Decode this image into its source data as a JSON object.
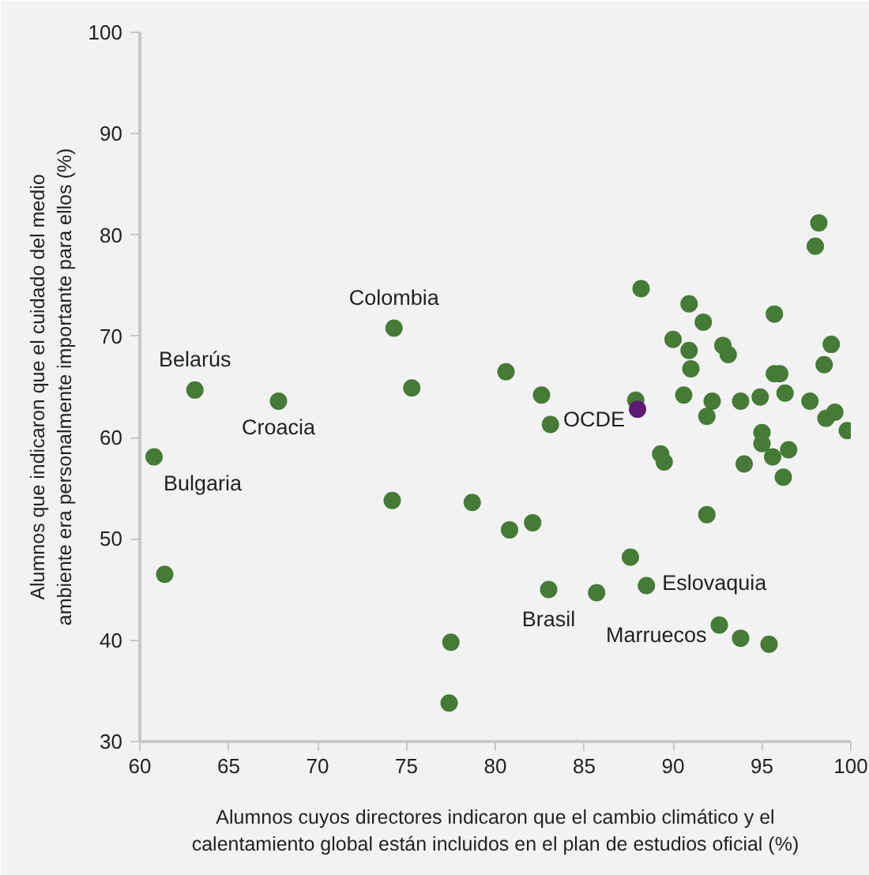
{
  "chart_data": {
    "type": "scatter",
    "xlabel": "Alumnos cuyos directores indicaron que el cambio climático y el calentamiento global están incluidos en el plan de estudios oficial (%)",
    "ylabel": "Alumnos que indicaron que el cuidado del medio ambiente era personalmente importante para ellos (%)",
    "xlim": [
      60,
      100
    ],
    "xticks": [
      60,
      65,
      70,
      75,
      80,
      85,
      90,
      95,
      100
    ],
    "ylim": [
      30,
      100
    ],
    "yticks": [
      30,
      40,
      50,
      60,
      70,
      80,
      90,
      100
    ],
    "grid": false,
    "marker": "circle",
    "series": [
      {
        "color": "#457a37",
        "x": [
          60.8,
          61.4,
          63.1,
          67.8,
          74.3,
          75.3,
          74.2,
          78.7,
          77.5,
          77.4,
          98.2,
          98.0,
          88.2,
          90.9,
          91.7,
          95.7,
          90.0,
          90.9,
          92.8,
          93.1,
          98.9,
          91.0,
          98.5,
          80.6,
          82.6,
          83.1,
          87.9,
          90.6,
          92.2,
          91.9,
          93.8,
          94.9,
          95.7,
          96.0,
          96.3,
          97.7,
          98.6,
          99.1,
          99.8,
          95.0,
          95.0,
          95.6,
          96.5,
          89.3,
          89.5,
          94.0,
          96.2,
          80.8,
          82.1,
          91.9,
          87.6,
          83.0,
          85.7,
          88.5,
          92.6,
          93.8,
          95.4
        ],
        "values": [
          58.1,
          46.5,
          64.7,
          63.6,
          70.8,
          64.9,
          53.8,
          53.6,
          39.8,
          33.8,
          81.2,
          78.9,
          74.7,
          73.2,
          71.4,
          72.2,
          69.7,
          68.6,
          69.1,
          68.2,
          69.2,
          66.8,
          67.2,
          66.5,
          64.2,
          61.3,
          63.7,
          64.2,
          63.6,
          62.1,
          63.6,
          64.0,
          66.3,
          66.3,
          64.4,
          63.6,
          61.9,
          62.5,
          60.7,
          60.5,
          59.4,
          58.1,
          58.8,
          58.4,
          57.6,
          57.4,
          56.1,
          50.9,
          51.6,
          52.4,
          48.2,
          45.0,
          44.7,
          45.4,
          41.5,
          40.2,
          39.6
        ]
      },
      {
        "color": "#5e1a73",
        "x": [
          88.0
        ],
        "values": [
          62.8
        ]
      }
    ],
    "annotations": [
      {
        "text": "Colombia",
        "x": 74.3,
        "y": 70.8
      },
      {
        "text": "Belarús",
        "x": 63.1,
        "y": 64.7
      },
      {
        "text": "Croacia",
        "x": 67.8,
        "y": 63.6
      },
      {
        "text": "Bulgaria",
        "x": 60.8,
        "y": 58.1
      },
      {
        "text": "OCDE",
        "x": 88.0,
        "y": 62.8
      },
      {
        "text": "Brasil",
        "x": 83.0,
        "y": 45.0
      },
      {
        "text": "Eslovaquia",
        "x": 88.5,
        "y": 45.4
      },
      {
        "text": "Marruecos",
        "x": 92.6,
        "y": 41.5
      }
    ]
  }
}
